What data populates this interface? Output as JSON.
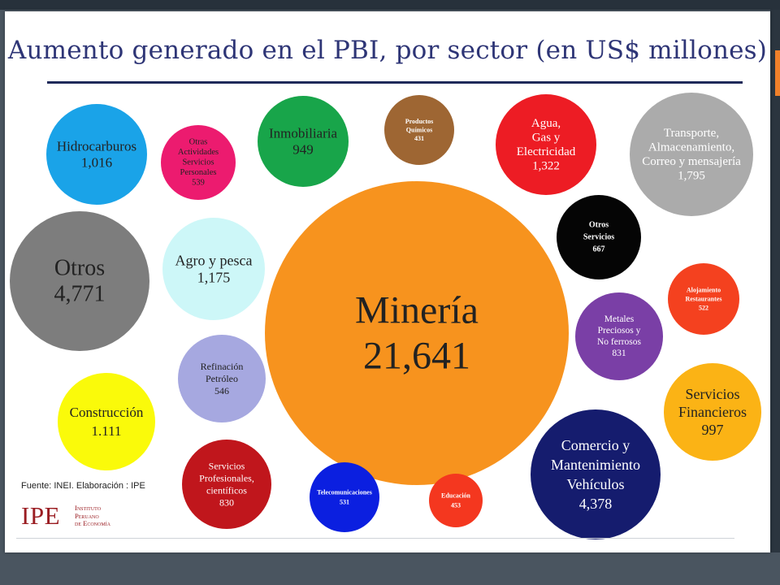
{
  "title": "Aumento generado en el PBI, por sector (en US$ millones)",
  "source": "Fuente: INEI. Elaboración : IPE",
  "logo": {
    "mark": "IPE",
    "lines": [
      "Instituto",
      "Peruano",
      "de Economía"
    ]
  },
  "chart_data": {
    "type": "bubble",
    "title": "Aumento generado en el PBI, por sector (en US$ millones)",
    "unit": "US$ millones",
    "sectors": [
      {
        "name_lines": [
          "Hidrocarburos"
        ],
        "label": "1,016",
        "value": 1016,
        "color": "#1aa3e8"
      },
      {
        "name_lines": [
          "Otras",
          "Actividades",
          "Servicios",
          "Personales"
        ],
        "label": "539",
        "value": 539,
        "color": "#ec1b6f"
      },
      {
        "name_lines": [
          "Inmobiliaria"
        ],
        "label": "949",
        "value": 949,
        "color": "#18a54a"
      },
      {
        "name_lines": [
          "Productos",
          "Químicos"
        ],
        "label": "431",
        "value": 431,
        "color": "#9e6633"
      },
      {
        "name_lines": [
          "Agua,",
          "Gas y",
          "Electricidad"
        ],
        "label": "1,322",
        "value": 1322,
        "color": "#ed1c24"
      },
      {
        "name_lines": [
          "Transporte,",
          "Almacenamiento,",
          "Correo y mensajería"
        ],
        "label": "1,795",
        "value": 1795,
        "color": "#ababab"
      },
      {
        "name_lines": [
          "Otros"
        ],
        "label": "4,771",
        "value": 4771,
        "color": "#7d7d7d"
      },
      {
        "name_lines": [
          "Agro y pesca"
        ],
        "label": "1,175",
        "value": 1175,
        "color": "#cdf7f8"
      },
      {
        "name_lines": [
          "Minería"
        ],
        "label": "21,641",
        "value": 21641,
        "color": "#f7931e"
      },
      {
        "name_lines": [
          "Otros",
          "Servicios"
        ],
        "label": "667",
        "value": 667,
        "color": "#050505"
      },
      {
        "name_lines": [
          "Alojamiento",
          "Restaurantes"
        ],
        "label": "522",
        "value": 522,
        "color": "#f4411f"
      },
      {
        "name_lines": [
          "Metales",
          "Preciosos y",
          "No ferrosos"
        ],
        "label": "831",
        "value": 831,
        "color": "#7a3fa6"
      },
      {
        "name_lines": [
          "Refinación",
          "Petróleo"
        ],
        "label": "546",
        "value": 546,
        "color": "#a6a8e0"
      },
      {
        "name_lines": [
          "Servicios",
          "Financieros"
        ],
        "label": "997",
        "value": 997,
        "color": "#fbb315"
      },
      {
        "name_lines": [
          "Construcción"
        ],
        "label": "1.111",
        "value": 1111,
        "color": "#fafa0a"
      },
      {
        "name_lines": [
          "Servicios",
          "Profesionales,",
          "científicos"
        ],
        "label": "830",
        "value": 830,
        "color": "#c0161c"
      },
      {
        "name_lines": [
          "Telecomunicaciones"
        ],
        "label": "531",
        "value": 531,
        "color": "#0b1fe0"
      },
      {
        "name_lines": [
          "Educación"
        ],
        "label": "453",
        "value": 453,
        "color": "#f4371f"
      },
      {
        "name_lines": [
          "Comercio y",
          "Mantenimiento",
          "Vehículos"
        ],
        "label": "4,378",
        "value": 4378,
        "color": "#151c6e"
      }
    ]
  }
}
